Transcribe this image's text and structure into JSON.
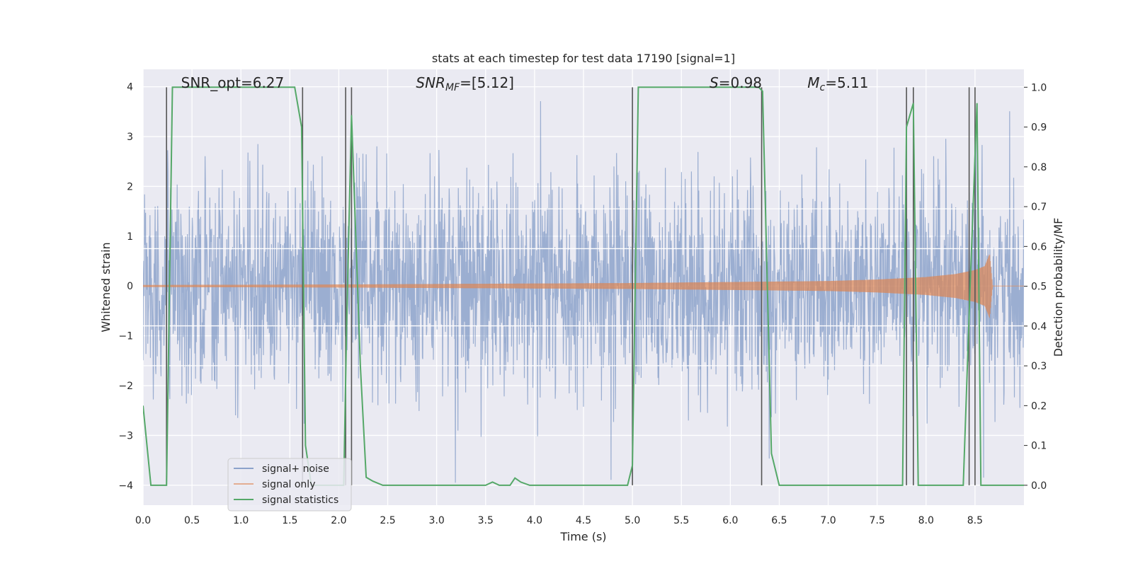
{
  "chart_data": {
    "type": "line",
    "title": "stats at each timestep for test data 17190 [signal=1]",
    "xlabel": "Time (s)",
    "ylabel": "Whitened strain",
    "ylabel_right": "Detection probability/MF",
    "xlim": [
      0.0,
      9.0
    ],
    "ylim": [
      -4.4,
      4.35
    ],
    "ylim_right": [
      -0.05,
      1.045
    ],
    "x_ticks": [
      "0.0",
      "0.5",
      "1.0",
      "1.5",
      "2.0",
      "2.5",
      "3.0",
      "3.5",
      "4.0",
      "4.5",
      "5.0",
      "5.5",
      "6.0",
      "6.5",
      "7.0",
      "7.5",
      "8.0",
      "8.5"
    ],
    "x_tick_values": [
      0.0,
      0.5,
      1.0,
      1.5,
      2.0,
      2.5,
      3.0,
      3.5,
      4.0,
      4.5,
      5.0,
      5.5,
      6.0,
      6.5,
      7.0,
      7.5,
      8.0,
      8.5
    ],
    "y_ticks": [
      "−4",
      "−3",
      "−2",
      "−1",
      "0",
      "1",
      "2",
      "3",
      "4"
    ],
    "y_tick_values": [
      -4,
      -3,
      -2,
      -1,
      0,
      1,
      2,
      3,
      4
    ],
    "y_ticks_right": [
      "0.0",
      "0.1",
      "0.2",
      "0.3",
      "0.4",
      "0.5",
      "0.6",
      "0.7",
      "0.8",
      "0.9",
      "1.0"
    ],
    "y_tick_values_right": [
      0.0,
      0.1,
      0.2,
      0.3,
      0.4,
      0.5,
      0.6,
      0.7,
      0.8,
      0.9,
      1.0
    ],
    "grid": true,
    "legend_position": "lower-left",
    "annotations": [
      {
        "label": "SNR_opt=6.27",
        "x": 0.2
      },
      {
        "label": "SNR_MF=[5.12]",
        "x": 2.6
      },
      {
        "label": "S=0.98",
        "x": 5.6
      },
      {
        "label": "M_c=5.11",
        "x": 6.6
      }
    ],
    "series": [
      {
        "name": "signal+ noise",
        "color": "#4c72b0",
        "axis": "left",
        "kind": "noise",
        "amplitude_envelope": 2.6
      },
      {
        "name": "signal only",
        "color": "#dd8452",
        "axis": "left",
        "kind": "chirp",
        "envelope": {
          "x": [
            0.0,
            2.0,
            4.0,
            5.0,
            6.0,
            6.5,
            7.0,
            7.5,
            8.0,
            8.3,
            8.5,
            8.6,
            8.65,
            8.68
          ],
          "y": [
            0.02,
            0.03,
            0.05,
            0.06,
            0.08,
            0.09,
            0.1,
            0.13,
            0.18,
            0.24,
            0.32,
            0.4,
            0.65,
            0.0
          ]
        }
      },
      {
        "name": "signal statistics",
        "color": "#55a868",
        "axis": "right",
        "x": [
          0.0,
          0.08,
          0.15,
          0.24,
          0.3,
          1.55,
          1.62,
          1.66,
          1.72,
          2.05,
          2.08,
          2.13,
          2.22,
          2.28,
          2.35,
          2.45,
          3.5,
          3.57,
          3.64,
          3.75,
          3.8,
          3.86,
          3.95,
          4.95,
          5.0,
          5.06,
          6.29,
          6.33,
          6.42,
          6.5,
          7.76,
          7.8,
          7.87,
          7.92,
          8.38,
          8.45,
          8.52,
          8.56,
          8.7,
          9.0
        ],
        "y": [
          0.2,
          0.0,
          0.0,
          0.0,
          1.0,
          1.0,
          0.9,
          0.1,
          0.0,
          0.0,
          0.4,
          0.93,
          0.3,
          0.02,
          0.01,
          0.0,
          0.0,
          0.008,
          0.0,
          0.0,
          0.018,
          0.008,
          0.0,
          0.0,
          0.05,
          1.0,
          1.0,
          0.99,
          0.08,
          0.0,
          0.0,
          0.9,
          0.96,
          0.0,
          0.0,
          0.5,
          0.96,
          0.0,
          0.0,
          0.0
        ]
      }
    ],
    "vertical_markers": [
      0.24,
      1.63,
      2.07,
      2.13,
      5.0,
      6.32,
      7.8,
      7.87,
      8.44,
      8.5
    ],
    "horizontal_lines_left": [
      1.55,
      0.75,
      -0.8,
      -1.6
    ]
  }
}
